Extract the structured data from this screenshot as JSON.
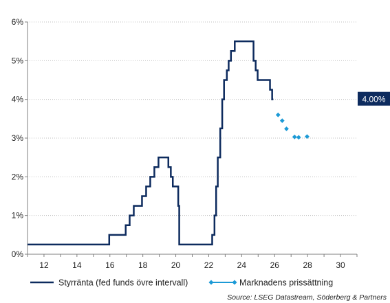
{
  "chart_data": {
    "type": "line",
    "xlim": [
      11,
      31
    ],
    "ylim": [
      0,
      6
    ],
    "x_ticks": [
      12,
      14,
      16,
      18,
      20,
      22,
      24,
      26,
      28,
      30
    ],
    "x_tick_labels": [
      "12",
      "14",
      "16",
      "18",
      "20",
      "22",
      "24",
      "26",
      "28",
      "30"
    ],
    "y_ticks": [
      0,
      1,
      2,
      3,
      4,
      5,
      6
    ],
    "y_tick_labels": [
      "0%",
      "1%",
      "2%",
      "3%",
      "4%",
      "5%",
      "6%"
    ],
    "grid": "horizontal-dotted",
    "legend_position": "bottom",
    "source": "Source: LSEG Datastream, Söderberg & Partners",
    "callout": {
      "text": "4.00%",
      "value": 4.0
    },
    "series": [
      {
        "name": "Styrränta (fed funds övre intervall)",
        "style": "step-line",
        "color": "#0d2b5e",
        "points": [
          [
            11.0,
            0.25
          ],
          [
            15.96,
            0.25
          ],
          [
            15.96,
            0.5
          ],
          [
            16.96,
            0.5
          ],
          [
            16.96,
            0.75
          ],
          [
            17.2,
            0.75
          ],
          [
            17.2,
            1.0
          ],
          [
            17.45,
            1.0
          ],
          [
            17.45,
            1.25
          ],
          [
            17.95,
            1.25
          ],
          [
            17.95,
            1.5
          ],
          [
            18.2,
            1.5
          ],
          [
            18.2,
            1.75
          ],
          [
            18.45,
            1.75
          ],
          [
            18.45,
            2.0
          ],
          [
            18.7,
            2.0
          ],
          [
            18.7,
            2.25
          ],
          [
            18.95,
            2.25
          ],
          [
            18.95,
            2.5
          ],
          [
            19.55,
            2.5
          ],
          [
            19.55,
            2.25
          ],
          [
            19.7,
            2.25
          ],
          [
            19.7,
            2.0
          ],
          [
            19.82,
            2.0
          ],
          [
            19.82,
            1.75
          ],
          [
            20.15,
            1.75
          ],
          [
            20.15,
            1.25
          ],
          [
            20.21,
            1.25
          ],
          [
            20.21,
            0.25
          ],
          [
            22.21,
            0.25
          ],
          [
            22.21,
            0.5
          ],
          [
            22.35,
            0.5
          ],
          [
            22.35,
            1.0
          ],
          [
            22.45,
            1.0
          ],
          [
            22.45,
            1.75
          ],
          [
            22.55,
            1.75
          ],
          [
            22.55,
            2.5
          ],
          [
            22.7,
            2.5
          ],
          [
            22.7,
            3.25
          ],
          [
            22.82,
            3.25
          ],
          [
            22.82,
            4.0
          ],
          [
            22.93,
            4.0
          ],
          [
            22.93,
            4.5
          ],
          [
            23.1,
            4.5
          ],
          [
            23.1,
            4.75
          ],
          [
            23.21,
            4.75
          ],
          [
            23.21,
            5.0
          ],
          [
            23.35,
            5.0
          ],
          [
            23.35,
            5.25
          ],
          [
            23.58,
            5.25
          ],
          [
            23.58,
            5.5
          ],
          [
            24.72,
            5.5
          ],
          [
            24.72,
            5.0
          ],
          [
            24.85,
            5.0
          ],
          [
            24.85,
            4.75
          ],
          [
            24.97,
            4.75
          ],
          [
            24.97,
            4.5
          ],
          [
            25.72,
            4.5
          ],
          [
            25.72,
            4.25
          ],
          [
            25.85,
            4.25
          ],
          [
            25.85,
            4.0
          ],
          [
            25.92,
            4.0
          ]
        ]
      },
      {
        "name": "Marknadens prissättning",
        "style": "dots",
        "color": "#1c9ad6",
        "points": [
          [
            26.21,
            3.6
          ],
          [
            26.46,
            3.45
          ],
          [
            26.72,
            3.24
          ],
          [
            27.21,
            3.03
          ],
          [
            27.46,
            3.02
          ],
          [
            27.97,
            3.04
          ]
        ]
      }
    ]
  }
}
